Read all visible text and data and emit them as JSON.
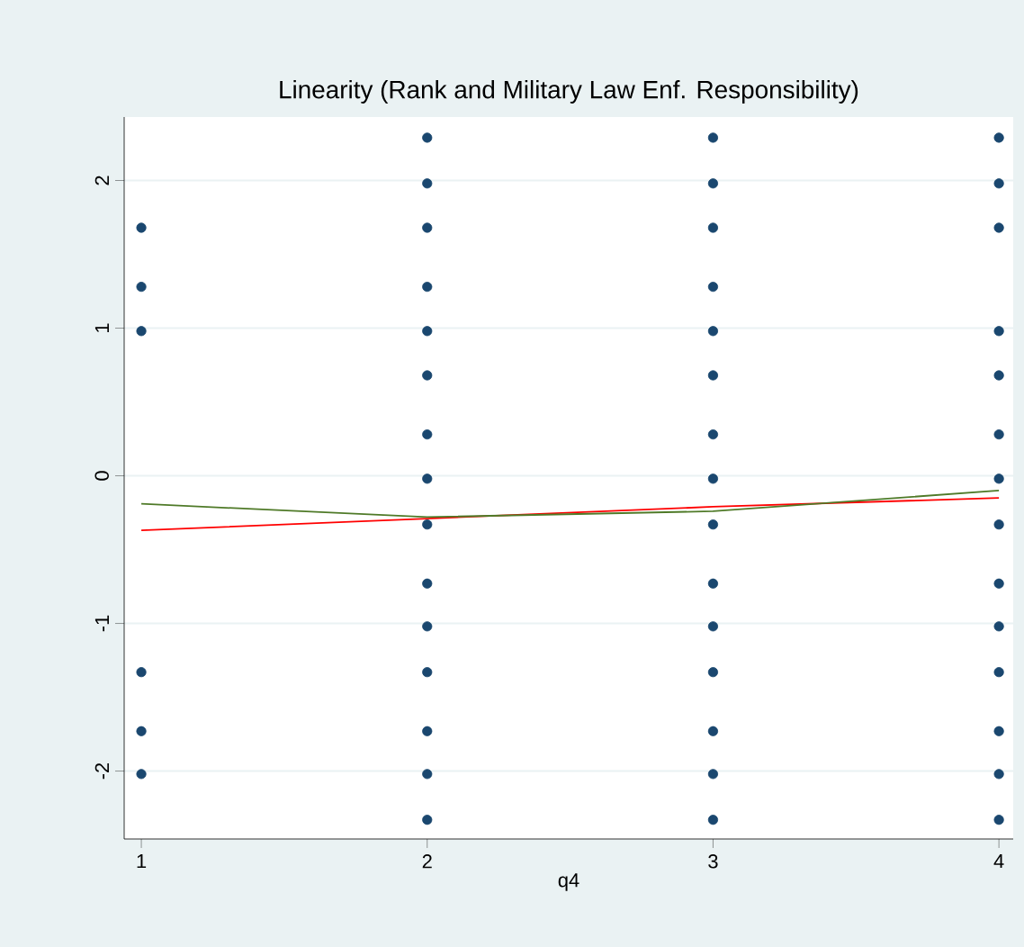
{
  "chart_data": {
    "type": "scatter",
    "title": "Linearity (Rank and Military Law Enf. Responsibility)",
    "xlabel": "q4",
    "xlim": [
      0.94,
      4.05
    ],
    "ylim": [
      -2.46,
      2.43
    ],
    "xticks": [
      1,
      2,
      3,
      4
    ],
    "yticks": [
      -2,
      -1,
      0,
      1,
      2
    ],
    "grid": "y",
    "series": [
      {
        "marker": "circle",
        "color": "#1a476f",
        "x": [
          1,
          1,
          1,
          1,
          1,
          1,
          2,
          2,
          2,
          2,
          2,
          2,
          2,
          2,
          2,
          2,
          2,
          2,
          2,
          2,
          2,
          3,
          3,
          3,
          3,
          3,
          3,
          3,
          3,
          3,
          3,
          3,
          3,
          3,
          3,
          3,
          4,
          4,
          4,
          4,
          4,
          4,
          4,
          4,
          4,
          4,
          4,
          4,
          4,
          4
        ],
        "values": [
          1.68,
          1.28,
          0.98,
          -1.33,
          -1.73,
          -2.02,
          2.29,
          1.98,
          1.68,
          1.28,
          0.98,
          0.68,
          0.28,
          -0.02,
          -0.33,
          -0.73,
          -1.02,
          -1.33,
          -1.73,
          -2.02,
          -2.33,
          2.29,
          1.98,
          1.68,
          1.28,
          0.98,
          0.68,
          0.28,
          -0.02,
          -0.33,
          -0.73,
          -1.02,
          -1.33,
          -1.73,
          -2.02,
          -2.33,
          2.29,
          1.98,
          1.68,
          0.98,
          0.68,
          0.28,
          -0.02,
          -0.33,
          -0.73,
          -1.02,
          -1.33,
          -1.73,
          -2.02,
          -2.33
        ]
      },
      {
        "type": "line",
        "marker": "none",
        "color": "#ff0000",
        "x": [
          1,
          2,
          3,
          4
        ],
        "values": [
          -0.37,
          -0.29,
          -0.21,
          -0.15
        ]
      },
      {
        "type": "line",
        "marker": "none",
        "color": "#4f7a28",
        "x": [
          1,
          2,
          3,
          4
        ],
        "values": [
          -0.19,
          -0.28,
          -0.24,
          -0.1
        ]
      }
    ]
  }
}
